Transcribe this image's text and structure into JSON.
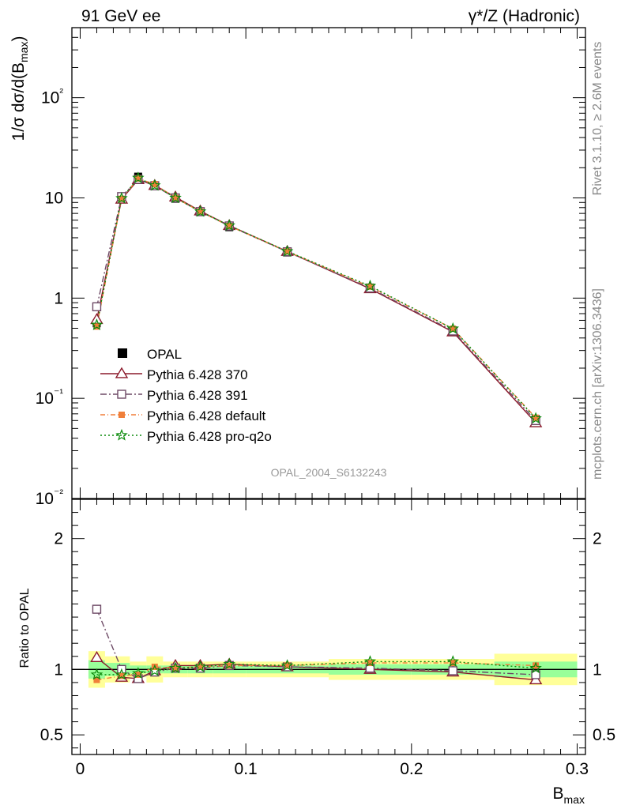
{
  "header": {
    "left_title": "91 GeV ee",
    "right_title": "γ*/Z (Hadronic)"
  },
  "side_labels": {
    "rivet": "Rivet 3.1.10, ≥ 2.6M events",
    "mcplots": "mcplots.cern.ch [arXiv:1306.3436]"
  },
  "analysis_id": "OPAL_2004_S6132243",
  "chart_data": [
    {
      "type": "line",
      "title": "",
      "ylabel": "1/σ dσ/d(B_max)",
      "xlabel": "",
      "yscale": "log",
      "xlim": [
        -0.005,
        0.305
      ],
      "ylim": [
        0.01,
        500
      ],
      "y_ticks": [
        "10⁻²",
        "10⁻¹",
        "1",
        "10",
        "10²"
      ],
      "legend_position": "left-lower",
      "x": [
        0.01,
        0.025,
        0.035,
        0.045,
        0.0575,
        0.0725,
        0.09,
        0.125,
        0.175,
        0.225,
        0.275
      ],
      "data": {
        "name": "OPAL",
        "values": [
          0.56,
          10.3,
          16.3,
          13.4,
          9.8,
          7.2,
          5.1,
          2.85,
          1.24,
          0.47,
          0.062
        ],
        "errors": [
          0.04,
          0.4,
          0.5,
          0.4,
          0.3,
          0.2,
          0.15,
          0.08,
          0.05,
          0.02,
          0.004
        ]
      },
      "series": [
        {
          "name": "Pythia 6.428 370",
          "color": "#8b1a2b",
          "marker": "open-triangle",
          "dash": "",
          "values": [
            0.61,
            9.7,
            15.2,
            13.3,
            10.2,
            7.4,
            5.3,
            2.92,
            1.24,
            0.46,
            0.057
          ]
        },
        {
          "name": "Pythia 6.428 391",
          "color": "#6e4a66",
          "marker": "open-square",
          "dash": "8,3,2,3",
          "values": [
            0.82,
            10.3,
            15.3,
            13.2,
            10.0,
            7.3,
            5.25,
            2.9,
            1.26,
            0.47,
            0.06
          ]
        },
        {
          "name": "Pythia 6.428 default",
          "color": "#f07f3a",
          "marker": "filled-square",
          "dash": "6,3,1,3",
          "values": [
            0.52,
            9.8,
            15.6,
            13.7,
            10.0,
            7.3,
            5.25,
            2.92,
            1.3,
            0.495,
            0.064
          ]
        },
        {
          "name": "Pythia 6.428 pro-q2o",
          "color": "#0a8a0a",
          "marker": "open-star",
          "dash": "2,3",
          "values": [
            0.54,
            9.9,
            15.8,
            13.3,
            10.0,
            7.3,
            5.3,
            2.93,
            1.32,
            0.495,
            0.063
          ]
        }
      ]
    },
    {
      "type": "line",
      "title": "",
      "ylabel": "Ratio to OPAL",
      "xlabel": "B_max",
      "xlim": [
        -0.005,
        0.305
      ],
      "ylim": [
        0.35,
        2.3
      ],
      "y_ticks": [
        "0.5",
        "1",
        "2"
      ],
      "x_ticks": [
        "0",
        "0.1",
        "0.2",
        "0.3"
      ],
      "bands": {
        "bin_edges": [
          0.005,
          0.015,
          0.03,
          0.04,
          0.05,
          0.065,
          0.08,
          0.1,
          0.15,
          0.2,
          0.25,
          0.3
        ],
        "green": [
          0.07,
          0.05,
          0.03,
          0.03,
          0.03,
          0.03,
          0.03,
          0.03,
          0.04,
          0.04,
          0.06
        ],
        "yellow": [
          0.14,
          0.1,
          0.06,
          0.1,
          0.06,
          0.06,
          0.06,
          0.06,
          0.08,
          0.08,
          0.12
        ]
      },
      "series": [
        {
          "name": "Pythia 6.428 370",
          "values": [
            1.09,
            0.94,
            0.93,
            0.99,
            1.03,
            1.03,
            1.04,
            1.02,
            1.0,
            0.98,
            0.92
          ]
        },
        {
          "name": "Pythia 6.428 391",
          "values": [
            1.46,
            1.0,
            0.93,
            0.98,
            1.01,
            1.01,
            1.03,
            1.02,
            1.01,
            0.99,
            0.96
          ]
        },
        {
          "name": "Pythia 6.428 default",
          "values": [
            0.92,
            0.95,
            0.96,
            1.02,
            1.01,
            1.02,
            1.03,
            1.03,
            1.05,
            1.05,
            1.03
          ]
        },
        {
          "name": "Pythia 6.428 pro-q2o",
          "values": [
            0.96,
            0.96,
            0.97,
            0.99,
            1.01,
            1.02,
            1.04,
            1.03,
            1.06,
            1.06,
            1.01
          ]
        }
      ]
    }
  ]
}
